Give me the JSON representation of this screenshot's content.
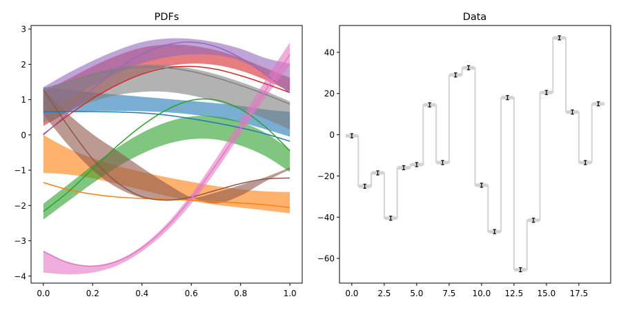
{
  "figure": {
    "background": "#ffffff"
  },
  "chart_data": [
    {
      "type": "line",
      "title": "PDFs",
      "xlim": [
        -0.05,
        1.05
      ],
      "ylim": [
        -4.2,
        3.1
      ],
      "xticks": [
        0.0,
        0.2,
        0.4,
        0.6,
        0.8,
        1.0
      ],
      "xtick_labels": [
        "0.0",
        "0.2",
        "0.4",
        "0.6",
        "0.8",
        "1.0"
      ],
      "yticks": [
        -4,
        -3,
        -2,
        -1,
        0,
        1,
        2,
        3
      ],
      "ytick_labels": [
        "−4",
        "−3",
        "−2",
        "−1",
        "0",
        "1",
        "2",
        "3"
      ],
      "grid": false,
      "x": [
        0.0,
        0.1,
        0.2,
        0.3,
        0.4,
        0.5,
        0.6,
        0.7,
        0.8,
        0.9,
        1.0
      ],
      "series": [
        {
          "color": "#1f77b4",
          "line": [
            0.65,
            0.66,
            0.66,
            0.65,
            0.62,
            0.56,
            0.46,
            0.34,
            0.2,
            0.03,
            -0.18
          ],
          "band_upper": [
            1.35,
            1.28,
            1.2,
            1.14,
            1.08,
            1.02,
            0.96,
            0.9,
            0.82,
            0.72,
            0.65
          ],
          "band_lower": [
            0.65,
            0.66,
            0.68,
            0.68,
            0.67,
            0.64,
            0.58,
            0.48,
            0.35,
            0.16,
            -0.05
          ]
        },
        {
          "color": "#ff7f0e",
          "line": [
            -1.35,
            -1.55,
            -1.68,
            -1.76,
            -1.8,
            -1.82,
            -1.85,
            -1.89,
            -1.93,
            -1.98,
            -2.06
          ],
          "band_upper": [
            0.0,
            -0.38,
            -0.66,
            -0.88,
            -1.05,
            -1.2,
            -1.33,
            -1.45,
            -1.54,
            -1.6,
            -1.62
          ],
          "band_lower": [
            -1.08,
            -1.12,
            -1.23,
            -1.39,
            -1.56,
            -1.73,
            -1.87,
            -1.98,
            -2.06,
            -2.14,
            -2.22
          ]
        },
        {
          "color": "#2ca02c",
          "line": [
            -2.17,
            -1.62,
            -0.96,
            -0.31,
            0.26,
            0.71,
            0.98,
            0.99,
            0.73,
            0.23,
            -0.45
          ],
          "band_upper": [
            -1.95,
            -1.41,
            -0.86,
            -0.36,
            0.06,
            0.36,
            0.52,
            0.52,
            0.37,
            0.06,
            -0.42
          ],
          "band_lower": [
            -2.4,
            -1.88,
            -1.37,
            -0.91,
            -0.53,
            -0.26,
            -0.12,
            -0.13,
            -0.3,
            -0.6,
            -1.05
          ]
        },
        {
          "color": "#d62728",
          "line": [
            0.02,
            0.55,
            1.03,
            1.42,
            1.72,
            1.9,
            1.94,
            1.86,
            1.68,
            1.45,
            1.2
          ],
          "band_upper": [
            1.22,
            1.58,
            1.94,
            2.25,
            2.47,
            2.56,
            2.53,
            2.4,
            2.18,
            1.9,
            1.62
          ],
          "band_lower": [
            0.25,
            0.65,
            1.05,
            1.42,
            1.73,
            1.94,
            2.02,
            1.98,
            1.82,
            1.56,
            1.23
          ]
        },
        {
          "color": "#9467bd",
          "line": [
            0.0,
            0.62,
            1.3,
            1.86,
            2.29,
            2.55,
            2.63,
            2.5,
            2.18,
            1.72,
            1.2
          ],
          "band_upper": [
            1.35,
            1.75,
            2.1,
            2.4,
            2.63,
            2.73,
            2.72,
            2.62,
            2.44,
            2.18,
            2.02
          ],
          "band_lower": [
            0.6,
            1.01,
            1.4,
            1.75,
            2.03,
            2.2,
            2.28,
            2.26,
            2.1,
            1.74,
            1.23
          ]
        },
        {
          "color": "#8c564b",
          "line": [
            1.28,
            0.25,
            -0.68,
            -1.35,
            -1.75,
            -1.85,
            -1.76,
            -1.57,
            -1.38,
            -1.25,
            -1.22
          ],
          "band_upper": [
            1.3,
            0.6,
            0.02,
            -0.45,
            -0.93,
            -1.38,
            -1.77,
            -1.94,
            -1.72,
            -1.32,
            -0.98
          ],
          "band_lower": [
            0.58,
            -0.28,
            -1.0,
            -1.5,
            -1.78,
            -1.86,
            -1.81,
            -1.63,
            -1.42,
            -1.2,
            -0.92
          ]
        },
        {
          "color": "#7f7f7f",
          "line": [
            1.3,
            1.5,
            1.7,
            1.85,
            1.92,
            1.9,
            1.8,
            1.62,
            1.4,
            1.15,
            0.87
          ],
          "band_upper": [
            1.25,
            1.52,
            1.74,
            1.9,
            1.98,
            1.97,
            1.88,
            1.72,
            1.5,
            1.24,
            0.95
          ],
          "band_lower": [
            0.35,
            0.67,
            0.95,
            1.13,
            1.22,
            1.22,
            1.12,
            0.95,
            0.72,
            0.46,
            0.15
          ]
        },
        {
          "color": "#e377c2",
          "line": [
            -3.3,
            -3.62,
            -3.72,
            -3.58,
            -3.2,
            -2.6,
            -1.8,
            -0.85,
            0.18,
            1.25,
            2.28
          ],
          "band_upper": [
            -3.28,
            -3.6,
            -3.7,
            -3.55,
            -3.15,
            -2.52,
            -1.68,
            -0.68,
            0.42,
            1.55,
            2.62
          ],
          "band_lower": [
            -3.9,
            -3.95,
            -3.9,
            -3.7,
            -3.3,
            -2.72,
            -1.95,
            -1.02,
            0.02,
            1.05,
            1.98
          ]
        }
      ]
    },
    {
      "type": "scatter",
      "title": "Data",
      "xlim": [
        -0.95,
        19.95
      ],
      "ylim": [
        -72,
        53
      ],
      "xticks": [
        0,
        2.5,
        5,
        7.5,
        10,
        12.5,
        15,
        17.5
      ],
      "xtick_labels": [
        "0.0",
        "2.5",
        "5.0",
        "7.5",
        "10.0",
        "12.5",
        "15.0",
        "17.5"
      ],
      "yticks": [
        -60,
        -40,
        -20,
        0,
        20,
        40
      ],
      "ytick_labels": [
        "−60",
        "−40",
        "−20",
        "0",
        "20",
        "40"
      ],
      "grid": false,
      "x": [
        0,
        1,
        2,
        3,
        4,
        5,
        6,
        7,
        8,
        9,
        10,
        11,
        12,
        13,
        14,
        15,
        16,
        17,
        18,
        19
      ],
      "y": [
        -0.5,
        -25,
        -18.5,
        -40.5,
        -16,
        -14.5,
        14.5,
        -13.5,
        29,
        32.5,
        -24.5,
        -47,
        18,
        -65.5,
        -41.5,
        20.5,
        47,
        11,
        -13.5,
        15
      ],
      "yerr": [
        1.0,
        1.0,
        1.0,
        1.0,
        1.0,
        1.0,
        1.0,
        1.0,
        1.0,
        1.0,
        1.0,
        1.0,
        1.0,
        1.0,
        1.0,
        1.0,
        1.0,
        1.0,
        1.0,
        1.0
      ],
      "step_color": "#d3d3d3",
      "marker_color": "#000000"
    }
  ]
}
